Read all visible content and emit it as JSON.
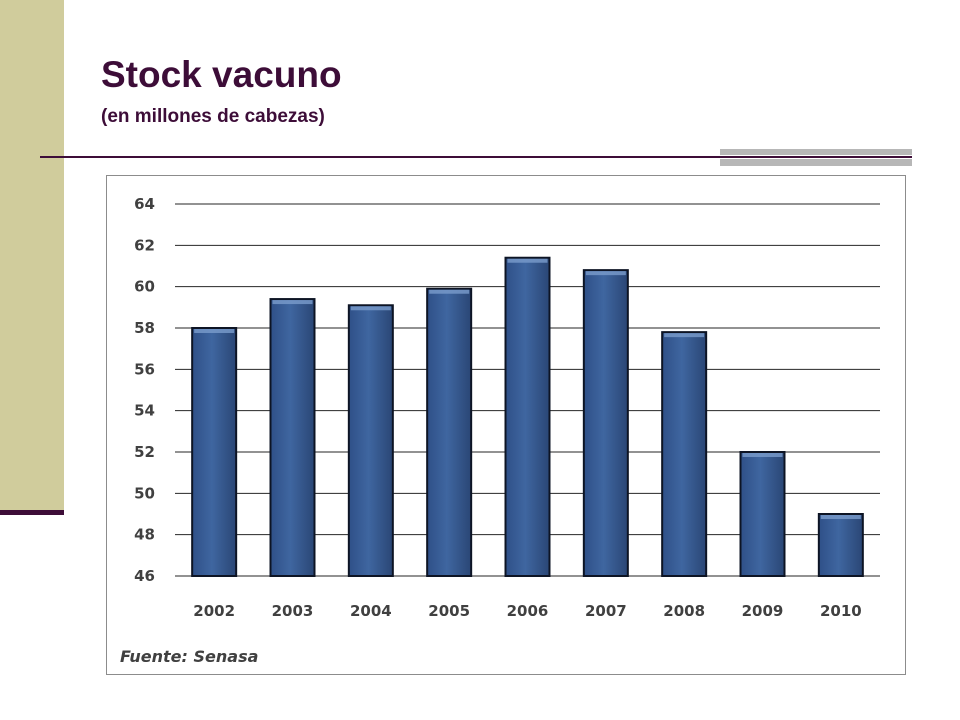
{
  "slide": {
    "title": "Stock vacuno",
    "subtitle": "(en millones de cabezas)",
    "source": "Fuente: Senasa"
  },
  "colors": {
    "title": "#3d0d38",
    "left_band": "#d0cc9c",
    "accent_rule": "#b7b7b7",
    "bar_fill": "#3f66a0",
    "bar_outline": "#0d1424",
    "gridline": "#262626"
  },
  "chart_data": {
    "type": "bar",
    "categories": [
      "2002",
      "2003",
      "2004",
      "2005",
      "2006",
      "2007",
      "2008",
      "2009",
      "2010"
    ],
    "values": [
      58,
      59.4,
      59.1,
      59.9,
      61.4,
      60.8,
      57.8,
      52,
      49
    ],
    "title": "",
    "xlabel": "",
    "ylabel": "",
    "ylim": [
      46,
      64
    ],
    "yticks": [
      46,
      48,
      50,
      52,
      54,
      56,
      58,
      60,
      62,
      64
    ],
    "grid": true,
    "legend": "none"
  }
}
